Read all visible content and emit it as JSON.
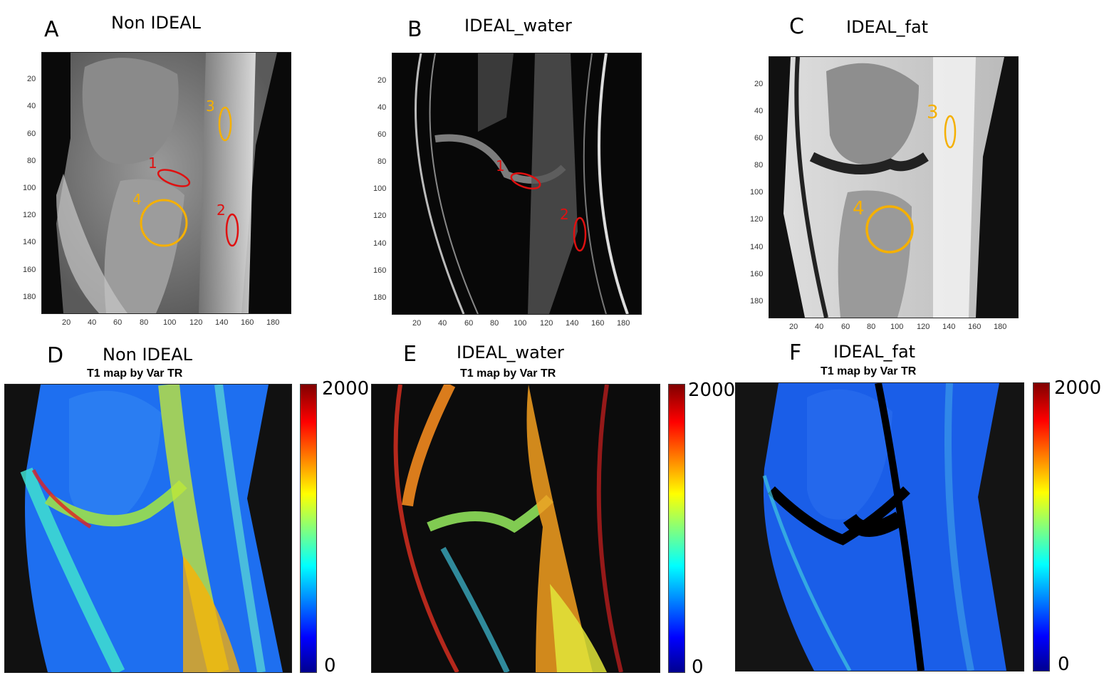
{
  "top_row": [
    {
      "letter": "A",
      "title": "Non IDEAL",
      "x_ticks": [
        "20",
        "40",
        "60",
        "80",
        "100",
        "120",
        "140",
        "160",
        "180"
      ],
      "y_ticks": [
        "20",
        "40",
        "60",
        "80",
        "100",
        "120",
        "140",
        "160",
        "180"
      ],
      "rois": [
        {
          "label": "1",
          "color": "#e01010"
        },
        {
          "label": "2",
          "color": "#e01010"
        },
        {
          "label": "3",
          "color": "#f5b000"
        },
        {
          "label": "4",
          "color": "#f5b000"
        }
      ]
    },
    {
      "letter": "B",
      "title": "IDEAL_water",
      "x_ticks": [
        "20",
        "40",
        "60",
        "80",
        "100",
        "120",
        "140",
        "160",
        "180"
      ],
      "y_ticks": [
        "20",
        "40",
        "60",
        "80",
        "100",
        "120",
        "140",
        "160",
        "180"
      ],
      "rois": [
        {
          "label": "1",
          "color": "#e01010"
        },
        {
          "label": "2",
          "color": "#e01010"
        }
      ]
    },
    {
      "letter": "C",
      "title": "IDEAL_fat",
      "x_ticks": [
        "20",
        "40",
        "60",
        "80",
        "100",
        "120",
        "140",
        "160",
        "180"
      ],
      "y_ticks": [
        "20",
        "40",
        "60",
        "80",
        "100",
        "120",
        "140",
        "160",
        "180"
      ],
      "rois": [
        {
          "label": "3",
          "color": "#f5b000"
        },
        {
          "label": "4",
          "color": "#f5b000"
        }
      ]
    }
  ],
  "bottom_row": [
    {
      "letter": "D",
      "title": "Non IDEAL",
      "subtitle": "T1 map by Var TR",
      "cbar_max": "2000",
      "cbar_min": "0"
    },
    {
      "letter": "E",
      "title": "IDEAL_water",
      "subtitle": "T1 map by Var TR",
      "cbar_max": "2000",
      "cbar_min": "0"
    },
    {
      "letter": "F",
      "title": "IDEAL_fat",
      "subtitle": "T1 map by Var TR",
      "cbar_max": "2000",
      "cbar_min": "0"
    }
  ],
  "colors": {
    "roi_red": "#e01010",
    "roi_yellow": "#f5b000",
    "colormap": "jet"
  }
}
